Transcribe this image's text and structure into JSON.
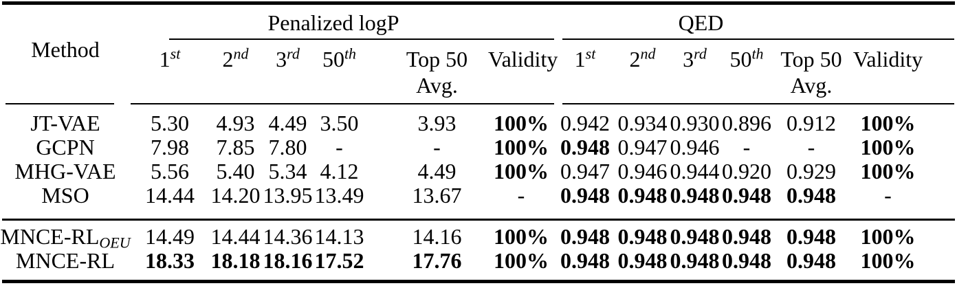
{
  "colors": {
    "ink": "#000000",
    "background": "#ffffff"
  },
  "table": {
    "header": {
      "method_label": "Method",
      "groups": [
        {
          "title": "Penalized logP"
        },
        {
          "title": "QED"
        }
      ],
      "rank_columns": [
        {
          "base": "1",
          "sup": "st"
        },
        {
          "base": "2",
          "sup": "nd"
        },
        {
          "base": "3",
          "sup": "rd"
        },
        {
          "base": "50",
          "sup": "th"
        }
      ],
      "top50_label_line1": "Top 50",
      "top50_label_line2": "Avg.",
      "validity_label": "Validity"
    },
    "sections": [
      {
        "rows": [
          {
            "method": {
              "text": "JT-VAE",
              "subscript": ""
            },
            "logp": [
              {
                "text": "5.30",
                "bold": false
              },
              {
                "text": "4.93",
                "bold": false
              },
              {
                "text": "4.49",
                "bold": false
              },
              {
                "text": "3.50",
                "bold": false
              },
              {
                "text": "3.93",
                "bold": false
              },
              {
                "text": "100%",
                "bold": true
              }
            ],
            "qed": [
              {
                "text": "0.942",
                "bold": false
              },
              {
                "text": "0.934",
                "bold": false
              },
              {
                "text": "0.930",
                "bold": false
              },
              {
                "text": "0.896",
                "bold": false
              },
              {
                "text": "0.912",
                "bold": false
              },
              {
                "text": "100%",
                "bold": true
              }
            ]
          },
          {
            "method": {
              "text": "GCPN",
              "subscript": ""
            },
            "logp": [
              {
                "text": "7.98",
                "bold": false
              },
              {
                "text": "7.85",
                "bold": false
              },
              {
                "text": "7.80",
                "bold": false
              },
              {
                "text": "-",
                "bold": false
              },
              {
                "text": "-",
                "bold": false
              },
              {
                "text": "100%",
                "bold": true
              }
            ],
            "qed": [
              {
                "text": "0.948",
                "bold": true
              },
              {
                "text": "0.947",
                "bold": false
              },
              {
                "text": "0.946",
                "bold": false
              },
              {
                "text": "-",
                "bold": false
              },
              {
                "text": "-",
                "bold": false
              },
              {
                "text": "100%",
                "bold": true
              }
            ]
          },
          {
            "method": {
              "text": "MHG-VAE",
              "subscript": ""
            },
            "logp": [
              {
                "text": "5.56",
                "bold": false
              },
              {
                "text": "5.40",
                "bold": false
              },
              {
                "text": "5.34",
                "bold": false
              },
              {
                "text": "4.12",
                "bold": false
              },
              {
                "text": "4.49",
                "bold": false
              },
              {
                "text": "100%",
                "bold": true
              }
            ],
            "qed": [
              {
                "text": "0.947",
                "bold": false
              },
              {
                "text": "0.946",
                "bold": false
              },
              {
                "text": "0.944",
                "bold": false
              },
              {
                "text": "0.920",
                "bold": false
              },
              {
                "text": "0.929",
                "bold": false
              },
              {
                "text": "100%",
                "bold": true
              }
            ]
          },
          {
            "method": {
              "text": "MSO",
              "subscript": ""
            },
            "logp": [
              {
                "text": "14.44",
                "bold": false
              },
              {
                "text": "14.20",
                "bold": false
              },
              {
                "text": "13.95",
                "bold": false
              },
              {
                "text": "13.49",
                "bold": false
              },
              {
                "text": "13.67",
                "bold": false
              },
              {
                "text": "-",
                "bold": false
              }
            ],
            "qed": [
              {
                "text": "0.948",
                "bold": true
              },
              {
                "text": "0.948",
                "bold": true
              },
              {
                "text": "0.948",
                "bold": true
              },
              {
                "text": "0.948",
                "bold": true
              },
              {
                "text": "0.948",
                "bold": true
              },
              {
                "text": "-",
                "bold": false
              }
            ]
          }
        ]
      },
      {
        "rows": [
          {
            "method": {
              "text": "MNCE-RL",
              "subscript": "OEU"
            },
            "logp": [
              {
                "text": "14.49",
                "bold": false
              },
              {
                "text": "14.44",
                "bold": false
              },
              {
                "text": "14.36",
                "bold": false
              },
              {
                "text": "14.13",
                "bold": false
              },
              {
                "text": "14.16",
                "bold": false
              },
              {
                "text": "100%",
                "bold": true
              }
            ],
            "qed": [
              {
                "text": "0.948",
                "bold": true
              },
              {
                "text": "0.948",
                "bold": true
              },
              {
                "text": "0.948",
                "bold": true
              },
              {
                "text": "0.948",
                "bold": true
              },
              {
                "text": "0.948",
                "bold": true
              },
              {
                "text": "100%",
                "bold": true
              }
            ]
          },
          {
            "method": {
              "text": "MNCE-RL",
              "subscript": ""
            },
            "logp": [
              {
                "text": "18.33",
                "bold": true
              },
              {
                "text": "18.18",
                "bold": true
              },
              {
                "text": "18.16",
                "bold": true
              },
              {
                "text": "17.52",
                "bold": true
              },
              {
                "text": "17.76",
                "bold": true
              },
              {
                "text": "100%",
                "bold": true
              }
            ],
            "qed": [
              {
                "text": "0.948",
                "bold": true
              },
              {
                "text": "0.948",
                "bold": true
              },
              {
                "text": "0.948",
                "bold": true
              },
              {
                "text": "0.948",
                "bold": true
              },
              {
                "text": "0.948",
                "bold": true
              },
              {
                "text": "100%",
                "bold": true
              }
            ]
          }
        ]
      }
    ]
  }
}
